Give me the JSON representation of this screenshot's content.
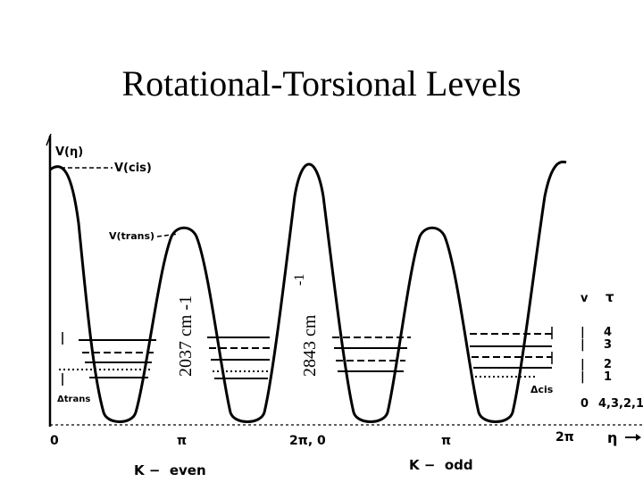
{
  "title": "Rotational-Torsional Levels",
  "labels": {
    "v_eta": "V(η)",
    "v_cis": "V(cis)",
    "v_trans": "V(trans)",
    "delta_trans": "Δtrans",
    "delta_cis": "Δcis",
    "barrier_left": "2037 cm -1",
    "barrier_right_value": "2843 cm",
    "barrier_right_exp": "-1",
    "v_header": "v",
    "tau_header": "τ",
    "k_even": "K −  even",
    "k_odd": "K −  odd",
    "eta_axis": "η"
  },
  "x_ticks": [
    "0",
    "π",
    "2π, 0",
    "π",
    "2π"
  ],
  "level_table": {
    "rows": [
      {
        "v": "|",
        "tau": "4"
      },
      {
        "v": "|",
        "tau": "3"
      },
      {
        "v": "|",
        "tau": "2"
      },
      {
        "v": "|",
        "tau": "1"
      },
      {
        "v": "0",
        "tau": "4,3,2,1"
      }
    ]
  }
}
